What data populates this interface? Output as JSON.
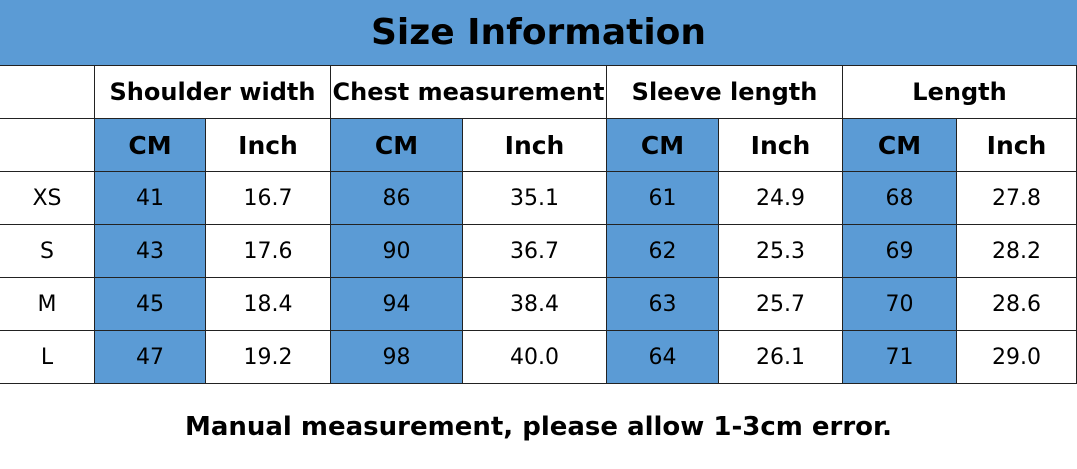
{
  "title": "Size Information",
  "table": {
    "groups": [
      "Shoulder width",
      "Chest measurement",
      "Sleeve length",
      "Length"
    ],
    "units": [
      "CM",
      "Inch"
    ],
    "rows": [
      {
        "size": "XS",
        "cells": [
          "41",
          "16.7",
          "86",
          "35.1",
          "61",
          "24.9",
          "68",
          "27.8"
        ]
      },
      {
        "size": "S",
        "cells": [
          "43",
          "17.6",
          "90",
          "36.7",
          "62",
          "25.3",
          "69",
          "28.2"
        ]
      },
      {
        "size": "M",
        "cells": [
          "45",
          "18.4",
          "94",
          "38.4",
          "63",
          "25.7",
          "70",
          "28.6"
        ]
      },
      {
        "size": "L",
        "cells": [
          "47",
          "19.2",
          "98",
          "40.0",
          "64",
          "26.1",
          "71",
          "29.0"
        ]
      }
    ]
  },
  "note": "Manual measurement, please allow 1-3cm error."
}
